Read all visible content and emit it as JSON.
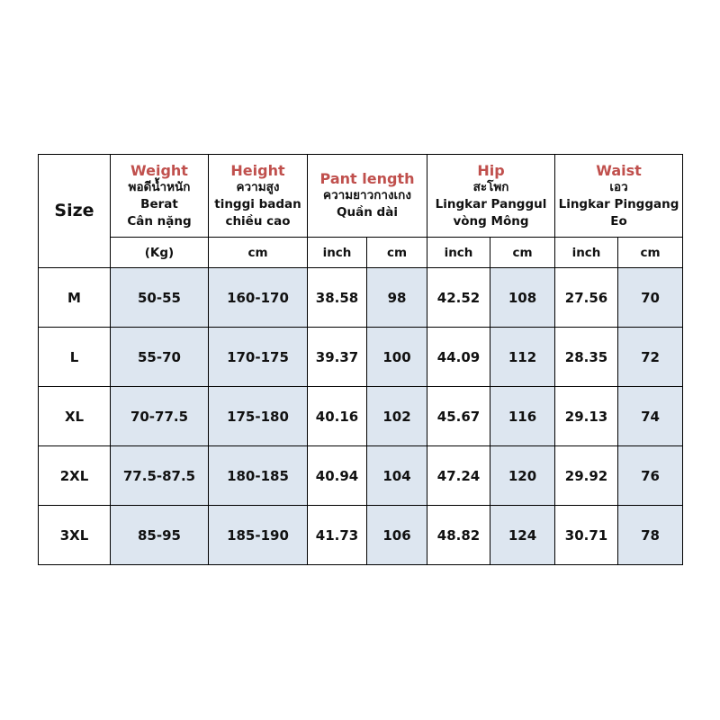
{
  "header": {
    "size": "Size",
    "weight": {
      "title": "Weight",
      "lines": [
        "พอดีน้ำหนัก",
        "Berat",
        "Cân nặng"
      ],
      "unit": "(Kg)"
    },
    "height": {
      "title": "Height",
      "lines": [
        "ความสูง",
        "tinggi badan",
        "chiều cao"
      ],
      "unit": "cm"
    },
    "pant_length": {
      "title": "Pant length",
      "lines": [
        "ความยาวกางเกง",
        "Quần dài"
      ],
      "units": [
        "inch",
        "cm"
      ]
    },
    "hip": {
      "title": "Hip",
      "lines": [
        "สะโพก",
        "Lingkar Panggul",
        "vòng Mông"
      ],
      "units": [
        "inch",
        "cm"
      ]
    },
    "waist": {
      "title": "Waist",
      "lines": [
        "เอว",
        "Lingkar Pinggang",
        "Eo"
      ],
      "units": [
        "inch",
        "cm"
      ]
    }
  },
  "rows": [
    [
      "M",
      "50-55",
      "160-170",
      "38.58",
      "98",
      "42.52",
      "108",
      "27.56",
      "70"
    ],
    [
      "L",
      "55-70",
      "170-175",
      "39.37",
      "100",
      "44.09",
      "112",
      "28.35",
      "72"
    ],
    [
      "XL",
      "70-77.5",
      "175-180",
      "40.16",
      "102",
      "45.67",
      "116",
      "29.13",
      "74"
    ],
    [
      "2XL",
      "77.5-87.5",
      "180-185",
      "40.94",
      "104",
      "47.24",
      "120",
      "29.92",
      "76"
    ],
    [
      "3XL",
      "85-95",
      "185-190",
      "41.73",
      "106",
      "48.82",
      "124",
      "30.71",
      "78"
    ]
  ],
  "colors": {
    "title": "#c0504d",
    "shade": "#dde6f0"
  }
}
